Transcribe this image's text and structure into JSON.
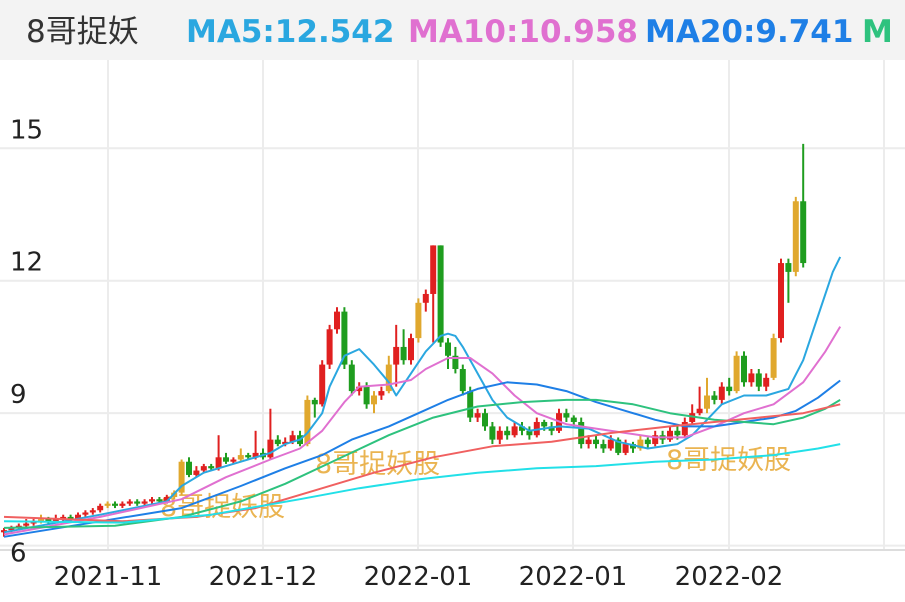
{
  "header": {
    "title": "8哥捉妖",
    "ma5": {
      "label": "MA5:12.542",
      "color": "#2aa7e0"
    },
    "ma10": {
      "label": "MA10:10.958",
      "color": "#e070d0"
    },
    "ma20": {
      "label": "MA20:9.741",
      "color": "#1e7fe6"
    },
    "ma_more": {
      "label": "M",
      "color": "#2ec27e"
    }
  },
  "watermark": "8哥捉妖股",
  "colors": {
    "up": "#e02020",
    "down": "#1f9d1f",
    "flat": "#e0a82e",
    "grid": "#ececec",
    "ma5": "#2aa7e0",
    "ma10": "#e070d0",
    "ma20": "#1e7fe6",
    "ma30": "#2ec27e",
    "ma60": "#f06060",
    "ma120": "#22e0e8"
  },
  "chart_data": {
    "type": "candlestick",
    "ylim": [
      5.9,
      17
    ],
    "y_ticks": [
      "6",
      "9",
      "12",
      "15"
    ],
    "x_ticks": [
      "2021-11",
      "2021-12",
      "2022-01",
      "2022-01",
      "2022-02"
    ],
    "candles": [
      [
        6.3,
        6.35,
        6.2,
        6.4
      ],
      [
        6.35,
        6.4,
        6.3,
        6.45
      ],
      [
        6.4,
        6.45,
        6.35,
        6.5
      ],
      [
        6.45,
        6.5,
        6.4,
        6.6
      ],
      [
        6.5,
        6.55,
        6.45,
        6.6
      ],
      [
        6.55,
        6.6,
        6.5,
        6.7
      ],
      [
        6.6,
        6.55,
        6.5,
        6.65
      ],
      [
        6.55,
        6.6,
        6.5,
        6.7
      ],
      [
        6.6,
        6.65,
        6.55,
        6.7
      ],
      [
        6.65,
        6.6,
        6.55,
        6.7
      ],
      [
        6.6,
        6.7,
        6.55,
        6.75
      ],
      [
        6.7,
        6.75,
        6.65,
        6.8
      ],
      [
        6.75,
        6.8,
        6.7,
        6.85
      ],
      [
        6.8,
        6.9,
        6.75,
        6.95
      ],
      [
        6.9,
        6.95,
        6.85,
        7.0
      ],
      [
        6.95,
        6.9,
        6.85,
        7.0
      ],
      [
        6.9,
        6.95,
        6.85,
        7.0
      ],
      [
        6.95,
        7.0,
        6.9,
        7.05
      ],
      [
        7.0,
        6.95,
        6.9,
        7.05
      ],
      [
        6.95,
        7.0,
        6.9,
        7.05
      ],
      [
        7.0,
        7.05,
        6.95,
        7.1
      ],
      [
        7.05,
        7.0,
        6.95,
        7.1
      ],
      [
        7.0,
        7.1,
        6.95,
        7.15
      ],
      [
        7.1,
        7.2,
        7.05,
        7.25
      ],
      [
        7.2,
        7.9,
        7.15,
        7.95
      ],
      [
        7.9,
        7.6,
        7.55,
        8.0
      ],
      [
        7.6,
        7.7,
        7.55,
        7.8
      ],
      [
        7.7,
        7.8,
        7.65,
        7.85
      ],
      [
        7.8,
        7.75,
        7.7,
        7.85
      ],
      [
        7.75,
        8.0,
        7.7,
        8.5
      ],
      [
        8.0,
        7.9,
        7.85,
        8.1
      ],
      [
        7.9,
        7.95,
        7.85,
        8.0
      ],
      [
        7.95,
        8.05,
        7.9,
        8.2
      ],
      [
        8.05,
        8.0,
        7.95,
        8.1
      ],
      [
        8.0,
        8.1,
        7.95,
        8.6
      ],
      [
        8.1,
        8.0,
        7.95,
        8.2
      ],
      [
        8.0,
        8.4,
        7.95,
        9.1
      ],
      [
        8.4,
        8.3,
        8.25,
        8.5
      ],
      [
        8.3,
        8.35,
        8.25,
        8.45
      ],
      [
        8.35,
        8.5,
        8.3,
        8.6
      ],
      [
        8.5,
        8.3,
        8.25,
        8.6
      ],
      [
        8.3,
        9.3,
        8.25,
        9.4
      ],
      [
        9.3,
        9.2,
        8.9,
        9.35
      ],
      [
        9.2,
        10.1,
        9.15,
        10.2
      ],
      [
        10.1,
        10.9,
        10.0,
        11.0
      ],
      [
        10.9,
        11.3,
        10.8,
        11.4
      ],
      [
        11.3,
        10.1,
        10.0,
        11.4
      ],
      [
        10.1,
        9.5,
        9.4,
        10.2
      ],
      [
        9.5,
        9.6,
        9.4,
        9.7
      ],
      [
        9.6,
        9.2,
        9.1,
        9.7
      ],
      [
        9.2,
        9.4,
        9.0,
        9.5
      ],
      [
        9.4,
        9.5,
        9.3,
        9.6
      ],
      [
        9.5,
        10.1,
        9.45,
        10.3
      ],
      [
        10.1,
        10.5,
        9.6,
        11.0
      ],
      [
        10.5,
        10.2,
        10.1,
        10.9
      ],
      [
        10.2,
        10.7,
        10.1,
        10.8
      ],
      [
        10.7,
        11.5,
        10.6,
        11.6
      ],
      [
        11.5,
        11.7,
        11.3,
        11.8
      ],
      [
        11.7,
        12.8,
        10.6,
        12.8
      ],
      [
        12.8,
        10.6,
        10.5,
        12.8
      ],
      [
        10.6,
        10.3,
        10.0,
        10.7
      ],
      [
        10.3,
        10.0,
        9.9,
        10.5
      ],
      [
        10.0,
        9.5,
        9.4,
        10.1
      ],
      [
        9.5,
        8.9,
        8.8,
        9.6
      ],
      [
        8.9,
        9.0,
        8.8,
        9.1
      ],
      [
        9.0,
        8.7,
        8.6,
        9.1
      ],
      [
        8.7,
        8.4,
        8.3,
        8.8
      ],
      [
        8.4,
        8.6,
        8.3,
        8.7
      ],
      [
        8.6,
        8.5,
        8.4,
        8.7
      ],
      [
        8.5,
        8.7,
        8.45,
        8.8
      ],
      [
        8.7,
        8.6,
        8.5,
        8.8
      ],
      [
        8.6,
        8.5,
        8.4,
        8.7
      ],
      [
        8.5,
        8.8,
        8.45,
        8.9
      ],
      [
        8.8,
        8.7,
        8.6,
        8.85
      ],
      [
        8.7,
        8.6,
        8.5,
        8.8
      ],
      [
        8.6,
        9.0,
        8.55,
        9.1
      ],
      [
        9.0,
        8.9,
        8.8,
        9.1
      ],
      [
        8.9,
        8.8,
        8.7,
        8.95
      ],
      [
        8.8,
        8.3,
        8.2,
        8.9
      ],
      [
        8.3,
        8.4,
        8.2,
        8.5
      ],
      [
        8.4,
        8.3,
        8.2,
        8.5
      ],
      [
        8.3,
        8.2,
        8.1,
        8.4
      ],
      [
        8.2,
        8.4,
        8.15,
        8.5
      ],
      [
        8.4,
        8.1,
        8.05,
        8.45
      ],
      [
        8.1,
        8.3,
        8.05,
        8.4
      ],
      [
        8.3,
        8.2,
        8.1,
        8.35
      ],
      [
        8.2,
        8.4,
        8.15,
        8.5
      ],
      [
        8.4,
        8.3,
        8.2,
        8.45
      ],
      [
        8.3,
        8.5,
        8.25,
        8.6
      ],
      [
        8.5,
        8.4,
        8.3,
        8.6
      ],
      [
        8.4,
        8.6,
        8.35,
        8.7
      ],
      [
        8.6,
        8.5,
        8.4,
        8.7
      ],
      [
        8.5,
        8.8,
        8.45,
        8.9
      ],
      [
        8.8,
        9.0,
        8.75,
        9.2
      ],
      [
        9.0,
        9.1,
        8.95,
        9.6
      ],
      [
        9.1,
        9.4,
        9.0,
        9.8
      ],
      [
        9.4,
        9.3,
        9.2,
        9.5
      ],
      [
        9.3,
        9.6,
        9.2,
        9.7
      ],
      [
        9.6,
        9.5,
        9.4,
        9.8
      ],
      [
        9.5,
        10.3,
        9.45,
        10.4
      ],
      [
        10.3,
        9.7,
        9.6,
        10.4
      ],
      [
        9.7,
        9.9,
        9.6,
        10.0
      ],
      [
        9.9,
        9.6,
        9.5,
        10.0
      ],
      [
        9.6,
        9.8,
        9.5,
        9.9
      ],
      [
        9.8,
        10.7,
        9.75,
        10.8
      ],
      [
        10.7,
        12.4,
        10.6,
        12.5
      ],
      [
        12.4,
        12.2,
        11.5,
        12.5
      ],
      [
        12.2,
        13.8,
        12.1,
        13.9
      ],
      [
        13.8,
        12.4,
        12.3,
        15.1
      ]
    ],
    "ma_series": [
      {
        "name": "MA5",
        "values": [
          [
            0,
            6.3
          ],
          [
            13,
            6.7
          ],
          [
            22,
            7.0
          ],
          [
            24,
            7.35
          ],
          [
            27,
            7.65
          ],
          [
            32,
            7.9
          ],
          [
            36,
            8.1
          ],
          [
            38,
            8.3
          ],
          [
            40,
            8.4
          ],
          [
            41,
            8.55
          ],
          [
            43,
            9.0
          ],
          [
            44,
            9.6
          ],
          [
            46,
            10.3
          ],
          [
            48,
            10.45
          ],
          [
            50,
            10.1
          ],
          [
            52,
            9.7
          ],
          [
            53,
            9.4
          ],
          [
            55,
            9.9
          ],
          [
            57,
            10.4
          ],
          [
            59,
            10.75
          ],
          [
            60,
            10.8
          ],
          [
            61,
            10.75
          ],
          [
            62,
            10.5
          ],
          [
            64,
            9.9
          ],
          [
            66,
            9.3
          ],
          [
            68,
            8.9
          ],
          [
            71,
            8.6
          ],
          [
            75,
            8.7
          ],
          [
            79,
            8.65
          ],
          [
            83,
            8.35
          ],
          [
            87,
            8.2
          ],
          [
            91,
            8.3
          ],
          [
            93,
            8.5
          ],
          [
            95,
            8.85
          ],
          [
            97,
            9.2
          ],
          [
            100,
            9.4
          ],
          [
            103,
            9.4
          ],
          [
            106,
            9.55
          ],
          [
            108,
            10.2
          ],
          [
            110,
            11.2
          ],
          [
            112,
            12.2
          ],
          [
            113,
            12.54
          ]
        ]
      },
      {
        "name": "MA10",
        "values": [
          [
            0,
            6.25
          ],
          [
            13,
            6.65
          ],
          [
            24,
            7.05
          ],
          [
            30,
            7.55
          ],
          [
            36,
            7.95
          ],
          [
            40,
            8.2
          ],
          [
            43,
            8.6
          ],
          [
            46,
            9.25
          ],
          [
            48,
            9.6
          ],
          [
            52,
            9.65
          ],
          [
            55,
            9.75
          ],
          [
            57,
            10.0
          ],
          [
            60,
            10.25
          ],
          [
            63,
            10.25
          ],
          [
            66,
            9.9
          ],
          [
            69,
            9.4
          ],
          [
            72,
            9.0
          ],
          [
            76,
            8.75
          ],
          [
            80,
            8.65
          ],
          [
            84,
            8.55
          ],
          [
            88,
            8.45
          ],
          [
            92,
            8.45
          ],
          [
            96,
            8.7
          ],
          [
            100,
            9.0
          ],
          [
            104,
            9.2
          ],
          [
            108,
            9.7
          ],
          [
            111,
            10.4
          ],
          [
            113,
            10.96
          ]
        ]
      },
      {
        "name": "MA20",
        "values": [
          [
            0,
            6.2
          ],
          [
            13,
            6.55
          ],
          [
            24,
            6.85
          ],
          [
            32,
            7.35
          ],
          [
            38,
            7.75
          ],
          [
            43,
            8.05
          ],
          [
            47,
            8.4
          ],
          [
            52,
            8.7
          ],
          [
            56,
            9.0
          ],
          [
            60,
            9.3
          ],
          [
            64,
            9.55
          ],
          [
            68,
            9.7
          ],
          [
            72,
            9.65
          ],
          [
            76,
            9.5
          ],
          [
            80,
            9.25
          ],
          [
            84,
            9.05
          ],
          [
            88,
            8.85
          ],
          [
            92,
            8.7
          ],
          [
            96,
            8.7
          ],
          [
            100,
            8.8
          ],
          [
            104,
            8.9
          ],
          [
            107,
            9.05
          ],
          [
            110,
            9.35
          ],
          [
            113,
            9.74
          ]
        ]
      },
      {
        "name": "MA30",
        "values": [
          [
            0,
            6.4
          ],
          [
            15,
            6.45
          ],
          [
            24,
            6.65
          ],
          [
            32,
            7.0
          ],
          [
            38,
            7.4
          ],
          [
            45,
            7.95
          ],
          [
            52,
            8.5
          ],
          [
            58,
            8.9
          ],
          [
            64,
            9.15
          ],
          [
            70,
            9.25
          ],
          [
            76,
            9.3
          ],
          [
            80,
            9.3
          ],
          [
            85,
            9.2
          ],
          [
            90,
            9.0
          ],
          [
            96,
            8.85
          ],
          [
            100,
            8.8
          ],
          [
            104,
            8.75
          ],
          [
            108,
            8.9
          ],
          [
            111,
            9.1
          ],
          [
            113,
            9.3
          ]
        ]
      },
      {
        "name": "MA60",
        "values": [
          [
            0,
            6.65
          ],
          [
            16,
            6.55
          ],
          [
            26,
            6.65
          ],
          [
            34,
            6.85
          ],
          [
            42,
            7.25
          ],
          [
            50,
            7.65
          ],
          [
            58,
            8.0
          ],
          [
            66,
            8.25
          ],
          [
            74,
            8.35
          ],
          [
            82,
            8.55
          ],
          [
            90,
            8.7
          ],
          [
            96,
            8.8
          ],
          [
            102,
            8.9
          ],
          [
            108,
            9.0
          ],
          [
            113,
            9.2
          ]
        ]
      },
      {
        "name": "MA120",
        "values": [
          [
            0,
            6.55
          ],
          [
            16,
            6.52
          ],
          [
            28,
            6.7
          ],
          [
            40,
            7.05
          ],
          [
            48,
            7.3
          ],
          [
            56,
            7.5
          ],
          [
            64,
            7.65
          ],
          [
            72,
            7.75
          ],
          [
            80,
            7.8
          ],
          [
            88,
            7.9
          ],
          [
            96,
            7.95
          ],
          [
            104,
            8.05
          ],
          [
            110,
            8.2
          ],
          [
            113,
            8.3
          ]
        ]
      }
    ]
  }
}
